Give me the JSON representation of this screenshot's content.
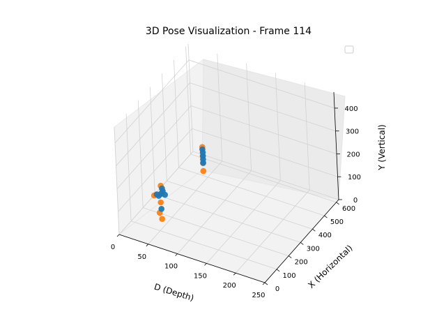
{
  "chart_data": {
    "type": "scatter",
    "title": "3D Pose Visualization - Frame 114",
    "xlabel": "D (Depth)",
    "ylabel": "X (Horizontal)",
    "zlabel": "Y (Vertical)",
    "d_ticks": [
      "0",
      "50",
      "100",
      "150",
      "200",
      "250"
    ],
    "x_ticks": [
      "0",
      "100",
      "200",
      "300",
      "400",
      "500",
      "600"
    ],
    "z_ticks": [
      "0",
      "100",
      "200",
      "300",
      "400"
    ],
    "grid": true,
    "legend": "top-right (empty)",
    "colors": {
      "series_a": "#ff7f0e",
      "series_b": "#1f77b4",
      "pane": "#f2f2f2",
      "pane_edge": "#ebebeb",
      "grid": "#d2d2d2"
    },
    "series": [
      {
        "color": "#ff7f0e",
        "points": [
          {
            "d": 95,
            "x": 260,
            "y": 310
          },
          {
            "d": 95,
            "x": 260,
            "y": 270
          },
          {
            "d": 95,
            "x": 260,
            "y": 240
          },
          {
            "d": 95,
            "x": 260,
            "y": 205
          },
          {
            "d": 50,
            "x": 120,
            "y": 185
          },
          {
            "d": 50,
            "x": 120,
            "y": 150
          },
          {
            "d": 50,
            "x": 115,
            "y": 115
          },
          {
            "d": 48,
            "x": 112,
            "y": 70
          },
          {
            "d": 50,
            "x": 120,
            "y": 40
          },
          {
            "d": 40,
            "x": 110,
            "y": 140
          }
        ]
      },
      {
        "color": "#1f77b4",
        "points": [
          {
            "d": 95,
            "x": 260,
            "y": 300
          },
          {
            "d": 95,
            "x": 262,
            "y": 285
          },
          {
            "d": 95,
            "x": 262,
            "y": 270
          },
          {
            "d": 95,
            "x": 262,
            "y": 255
          },
          {
            "d": 95,
            "x": 262,
            "y": 240
          },
          {
            "d": 52,
            "x": 120,
            "y": 175
          },
          {
            "d": 52,
            "x": 125,
            "y": 160
          },
          {
            "d": 50,
            "x": 120,
            "y": 150
          },
          {
            "d": 48,
            "x": 110,
            "y": 145
          },
          {
            "d": 55,
            "x": 128,
            "y": 145
          },
          {
            "d": 45,
            "x": 108,
            "y": 150
          },
          {
            "d": 50,
            "x": 118,
            "y": 85
          }
        ]
      }
    ]
  }
}
